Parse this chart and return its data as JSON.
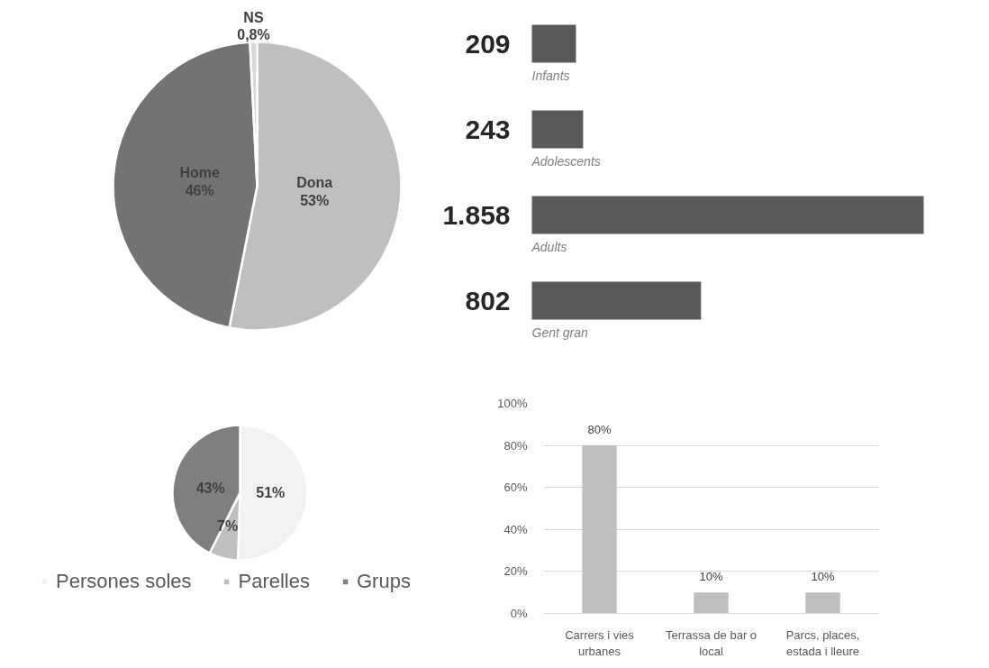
{
  "chart_data": [
    {
      "type": "pie",
      "categories": [
        "Dona",
        "Home",
        "NS"
      ],
      "values": [
        53,
        46,
        0.8
      ],
      "colors": [
        "#bfbfbf",
        "#737373",
        "#d9d9d9"
      ],
      "value_labels": [
        "53%",
        "46%",
        "0,8%"
      ]
    },
    {
      "type": "bar",
      "orientation": "horizontal",
      "categories": [
        "Infants",
        "Adolescents",
        "Adults",
        "Gent gran"
      ],
      "values": [
        209,
        243,
        1858,
        802
      ],
      "color": "#595959",
      "value_labels": [
        "209",
        "243",
        "1.858",
        "802"
      ]
    },
    {
      "type": "pie",
      "categories": [
        "Persones soles",
        "Parelles",
        "Grups"
      ],
      "values": [
        51,
        7,
        43
      ],
      "colors": [
        "#f2f2f2",
        "#bfbfbf",
        "#7f7f7f"
      ],
      "value_labels": [
        "51%",
        "7%",
        "43%"
      ],
      "legend": "bottom"
    },
    {
      "type": "bar",
      "categories": [
        "Carrers i vies urbanes",
        "Terrassa de bar o local",
        "Parcs, places, estada i lleure"
      ],
      "values": [
        80,
        10,
        10
      ],
      "color": "#bfbfbf",
      "value_labels": [
        "80%",
        "10%",
        "10%"
      ],
      "ylim": [
        0,
        100
      ],
      "yticks": [
        {
          "value": 0,
          "label": "0%"
        },
        {
          "value": 20,
          "label": "20%"
        },
        {
          "value": 40,
          "label": "40%"
        },
        {
          "value": 60,
          "label": "60%"
        },
        {
          "value": 80,
          "label": "80%"
        },
        {
          "value": 100,
          "label": "100%"
        }
      ],
      "grid": "y"
    }
  ]
}
